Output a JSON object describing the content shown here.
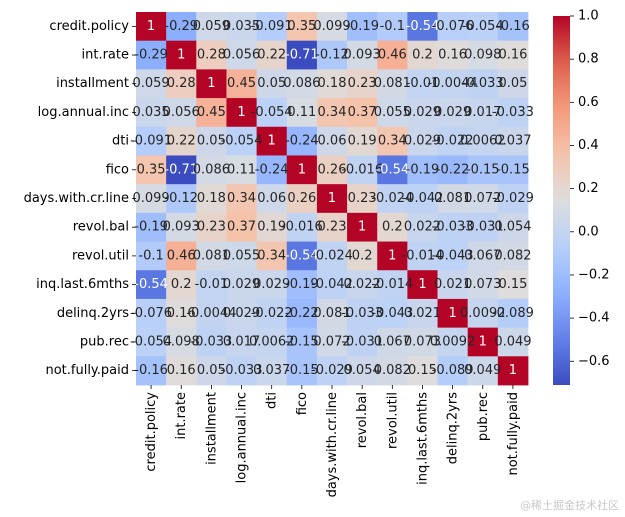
{
  "chart_data": {
    "type": "heatmap",
    "title": "",
    "xlabel": "",
    "ylabel": "",
    "labels": [
      "credit.policy",
      "int.rate",
      "installment",
      "log.annual.inc",
      "dti",
      "fico",
      "days.with.cr.line",
      "revol.bal",
      "revol.util",
      "inq.last.6mths",
      "delinq.2yrs",
      "pub.rec",
      "not.fully.paid"
    ],
    "matrix": [
      [
        1,
        -0.29,
        0.059,
        0.035,
        -0.091,
        0.35,
        0.099,
        -0.19,
        -0.1,
        -0.54,
        -0.076,
        -0.054,
        -0.16
      ],
      [
        -0.29,
        1,
        0.28,
        0.056,
        0.22,
        -0.71,
        -0.12,
        0.093,
        0.46,
        0.2,
        0.16,
        0.098,
        0.16
      ],
      [
        0.059,
        0.28,
        1,
        0.45,
        0.05,
        0.086,
        0.18,
        0.23,
        0.081,
        -0.01,
        -0.004,
        -0.033,
        0.05
      ],
      [
        0.035,
        0.056,
        0.45,
        1,
        -0.054,
        0.11,
        0.34,
        0.37,
        0.055,
        0.029,
        0.029,
        0.017,
        -0.033
      ],
      [
        -0.091,
        0.22,
        0.05,
        -0.054,
        1,
        -0.24,
        0.06,
        0.19,
        0.34,
        0.029,
        -0.022,
        0.006,
        0.037
      ],
      [
        0.35,
        -0.71,
        0.086,
        0.11,
        -0.24,
        1,
        0.26,
        -0.016,
        -0.54,
        -0.19,
        -0.22,
        -0.15,
        -0.15
      ],
      [
        0.099,
        -0.12,
        0.18,
        0.34,
        0.06,
        0.26,
        1,
        0.23,
        -0.024,
        -0.042,
        0.081,
        0.072,
        -0.029
      ],
      [
        -0.19,
        0.093,
        0.23,
        0.37,
        0.19,
        -0.016,
        0.23,
        1,
        0.2,
        0.022,
        -0.033,
        -0.031,
        0.054
      ],
      [
        -0.1,
        0.46,
        0.081,
        0.055,
        0.34,
        -0.54,
        -0.024,
        0.2,
        1,
        -0.014,
        -0.043,
        0.067,
        0.082
      ],
      [
        -0.54,
        0.2,
        -0.01,
        0.029,
        0.029,
        -0.19,
        -0.042,
        0.022,
        -0.014,
        1,
        0.021,
        0.073,
        0.15
      ],
      [
        -0.076,
        0.16,
        -0.004,
        0.029,
        -0.022,
        -0.22,
        0.081,
        -0.033,
        -0.043,
        0.021,
        1,
        0.009,
        -0.089
      ],
      [
        -0.054,
        0.098,
        -0.033,
        0.017,
        0.006,
        -0.15,
        0.072,
        -0.031,
        0.067,
        0.073,
        0.009,
        1,
        0.049
      ],
      [
        -0.16,
        0.16,
        0.05,
        -0.033,
        0.037,
        -0.15,
        -0.029,
        0.054,
        0.082,
        0.15,
        -0.089,
        0.049,
        1
      ]
    ],
    "cell_text": [
      [
        "1",
        "-0.29",
        "0.059",
        "0.035",
        "-0.091",
        "0.35",
        "0.099",
        "-0.19",
        "-0.1",
        "-0.54",
        "-0.076",
        "-0.054",
        "-0.16"
      ],
      [
        "-0.29",
        "1",
        "0.28",
        "0.056",
        "0.22",
        "-0.71",
        "-0.12",
        "0.093",
        "0.46",
        "0.2",
        "0.16",
        "0.098",
        "0.16"
      ],
      [
        "0.059",
        "0.28",
        "1",
        "0.45",
        "0.05",
        "0.086",
        "0.18",
        "0.23",
        "0.081",
        "-0.01",
        "-0.0044",
        "-0.033",
        "0.05"
      ],
      [
        "0.035",
        "0.056",
        "0.45",
        "1",
        "-0.054",
        "0.11",
        "0.34",
        "0.37",
        "0.055",
        "0.029",
        "0.029",
        "0.017",
        "-0.033"
      ],
      [
        "-0.091",
        "0.22",
        "0.05",
        "-0.054",
        "1",
        "-0.24",
        "0.06",
        "0.19",
        "0.34",
        "0.029",
        "-0.022",
        "0.0062",
        "0.037"
      ],
      [
        "0.35",
        "-0.71",
        "0.086",
        "0.11",
        "-0.24",
        "1",
        "0.26",
        "-0.016",
        "-0.54",
        "-0.19",
        "-0.22",
        "-0.15",
        "-0.15"
      ],
      [
        "0.099",
        "-0.12",
        "0.18",
        "0.34",
        "0.06",
        "0.26",
        "1",
        "0.23",
        "-0.024",
        "-0.042",
        "0.081",
        "0.072",
        "-0.029"
      ],
      [
        "-0.19",
        "0.093",
        "0.23",
        "0.37",
        "0.19",
        "-0.016",
        "0.23",
        "1",
        "0.2",
        "0.022",
        "-0.033",
        "-0.031",
        "0.054"
      ],
      [
        "-0.1",
        "0.46",
        "0.081",
        "0.055",
        "0.34",
        "-0.54",
        "-0.024",
        "0.2",
        "1",
        "-0.014",
        "-0.043",
        "0.067",
        "0.082"
      ],
      [
        "-0.54",
        "0.2",
        "-0.01",
        "0.029",
        "0.029",
        "-0.19",
        "-0.042",
        "0.022",
        "-0.014",
        "1",
        "0.021",
        "0.073",
        "0.15"
      ],
      [
        "-0.076",
        "0.16",
        "-0.0044",
        "0.029",
        "-0.022",
        "-0.22",
        "0.081",
        "-0.033",
        "-0.043",
        "0.021",
        "1",
        "0.0092",
        "-0.089"
      ],
      [
        "-0.054",
        "0.098",
        "-0.033",
        "0.017",
        "0.0062",
        "-0.15",
        "0.072",
        "-0.031",
        "0.067",
        "0.073",
        "0.0092",
        "1",
        "0.049"
      ],
      [
        "-0.16",
        "0.16",
        "0.05",
        "-0.033",
        "0.037",
        "-0.15",
        "-0.029",
        "0.054",
        "0.082",
        "0.15",
        "-0.089",
        "0.049",
        "1"
      ]
    ],
    "colormap": "coolwarm",
    "vmin": -0.71,
    "vmax": 1.0,
    "colorbar_ticks": [
      1.0,
      0.8,
      0.6,
      0.4,
      0.2,
      0.0,
      -0.2,
      -0.4,
      -0.6
    ],
    "colorbar_tick_labels": [
      "1.0",
      "0.8",
      "0.6",
      "0.4",
      "0.2",
      "0.0",
      "−0.2",
      "−0.4",
      "−0.6"
    ]
  },
  "watermark": "@稀土掘金技术社区"
}
